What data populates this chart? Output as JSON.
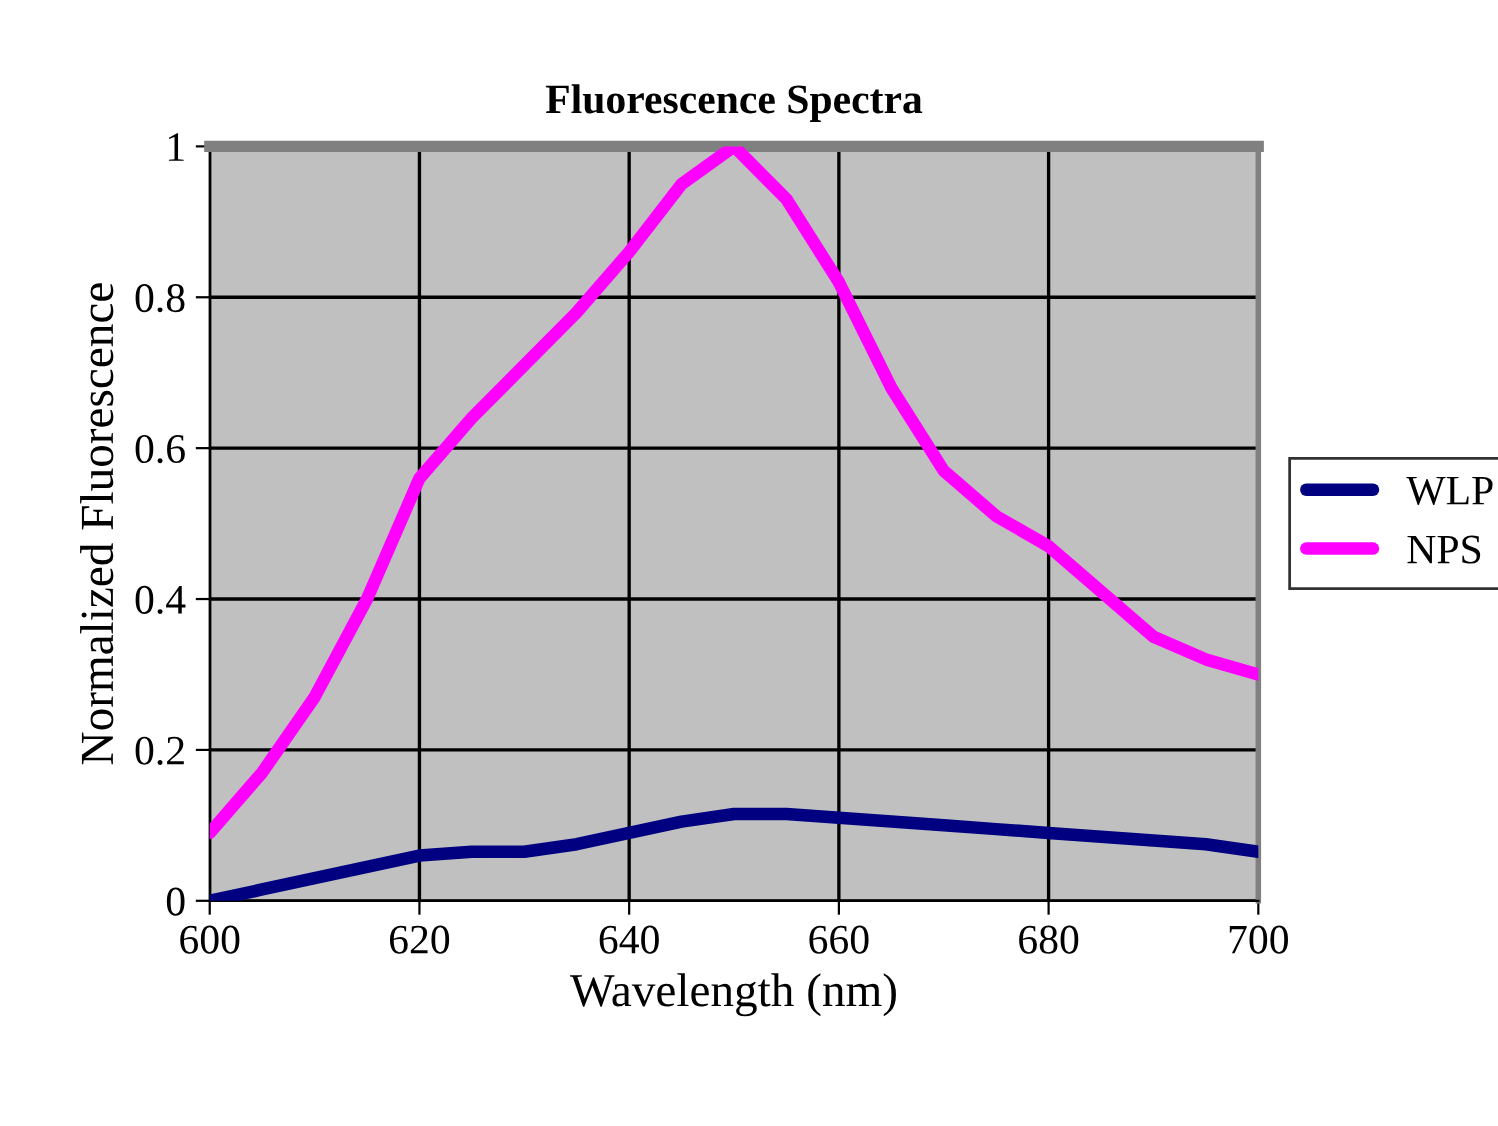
{
  "chart_data": {
    "type": "line",
    "title": "Fluorescence Spectra",
    "xlabel": "Wavelength (nm)",
    "ylabel": "Normalized Fluorescence",
    "x": [
      600,
      605,
      610,
      615,
      620,
      625,
      630,
      635,
      640,
      645,
      650,
      655,
      660,
      665,
      670,
      675,
      680,
      685,
      690,
      695,
      700
    ],
    "series": [
      {
        "name": "WLP",
        "color": "#000080",
        "values": [
          0.0,
          0.015,
          0.03,
          0.045,
          0.06,
          0.065,
          0.065,
          0.075,
          0.09,
          0.105,
          0.115,
          0.115,
          0.11,
          0.105,
          0.1,
          0.095,
          0.09,
          0.085,
          0.08,
          0.075,
          0.065
        ]
      },
      {
        "name": "NPS",
        "color": "#ff00ff",
        "values": [
          0.09,
          0.17,
          0.27,
          0.4,
          0.56,
          0.64,
          0.71,
          0.78,
          0.86,
          0.95,
          1.0,
          0.93,
          0.82,
          0.68,
          0.57,
          0.51,
          0.47,
          0.41,
          0.35,
          0.32,
          0.3
        ]
      }
    ],
    "xlim": [
      600,
      700
    ],
    "xticks": [
      600,
      620,
      640,
      660,
      680,
      700
    ],
    "ylim": [
      0,
      1
    ],
    "yticks": [
      0,
      0.2,
      0.4,
      0.6,
      0.8,
      1
    ],
    "grid": true,
    "legend": "right",
    "marker": "none",
    "line_style": "solid"
  }
}
